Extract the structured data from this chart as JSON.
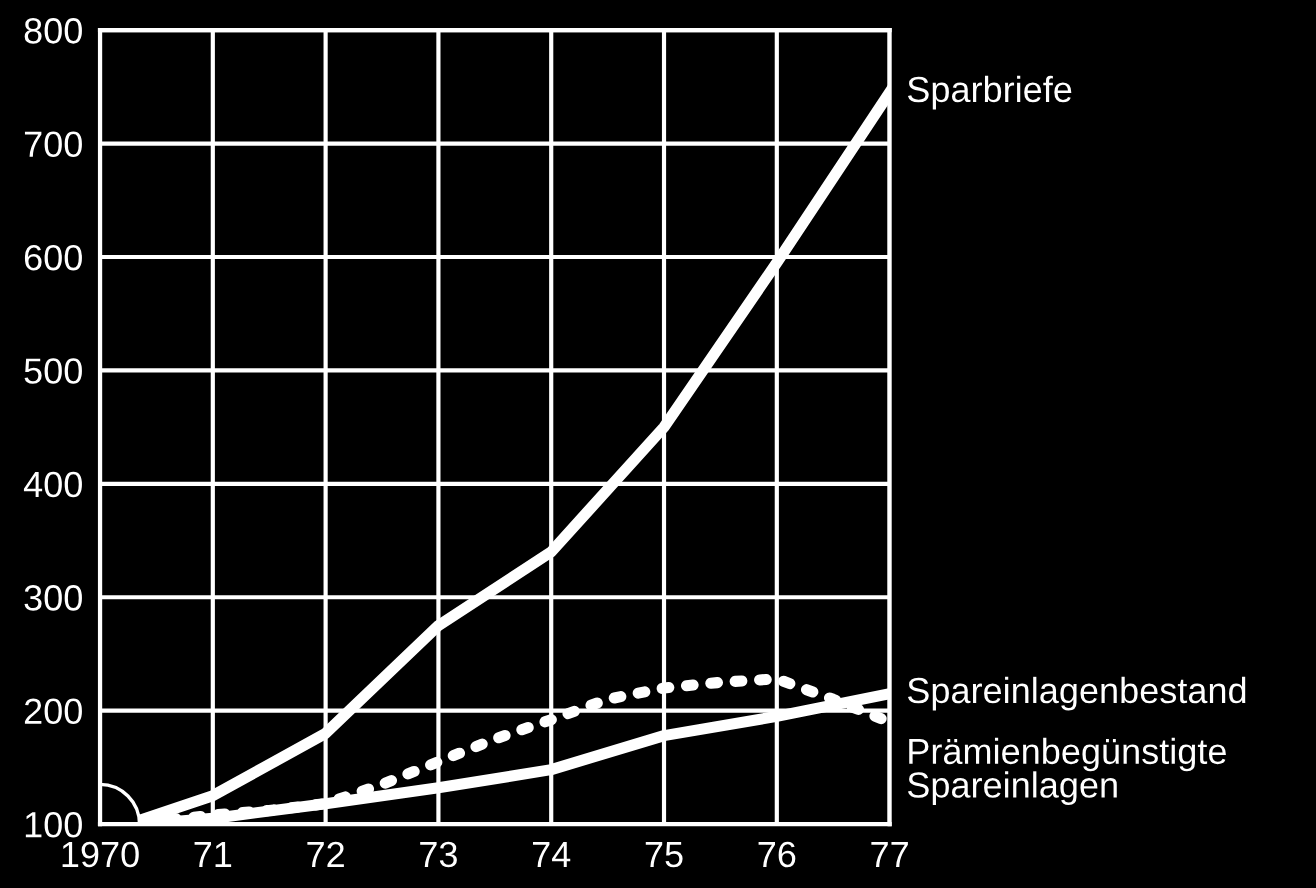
{
  "chart_data": {
    "type": "line",
    "x": [
      1970.4,
      1971,
      1972,
      1973,
      1974,
      1975,
      1976,
      1977
    ],
    "series": [
      {
        "name": "Sparbriefe",
        "color": "#ffffff",
        "line_style": "solid",
        "values": [
          105,
          125,
          180,
          275,
          340,
          450,
          595,
          745
        ]
      },
      {
        "name": "Spareinlagenbestand",
        "color": "#ffffff",
        "line_style": "solid",
        "values": [
          100,
          105,
          118,
          132,
          148,
          178,
          195,
          215
        ]
      },
      {
        "name": "Prämienbegünstigte\nSpareinlagen",
        "color": "#ffffff",
        "line_style": "dotted",
        "x": [
          1970.4,
          1970.75,
          1971,
          1971.5,
          1972,
          1972.5,
          1973,
          1973.5,
          1974,
          1974.5,
          1975,
          1975.5,
          1976,
          1976.5,
          1977
        ],
        "values": [
          103,
          105,
          108,
          112,
          118,
          135,
          155,
          175,
          192,
          210,
          220,
          225,
          228,
          210,
          190
        ]
      }
    ],
    "xlim": [
      1970,
      1977
    ],
    "ylim": [
      100,
      800
    ],
    "xticks": [
      1970,
      {
        "value": 1971,
        "label": "71"
      },
      {
        "value": 1972,
        "label": "72"
      },
      {
        "value": 1973,
        "label": "73"
      },
      {
        "value": 1974,
        "label": "74"
      },
      {
        "value": 1975,
        "label": "75"
      },
      {
        "value": 1976,
        "label": "76"
      },
      {
        "value": 1977,
        "label": "77"
      }
    ],
    "yticks": [
      100,
      200,
      300,
      400,
      500,
      600,
      700,
      800
    ],
    "grid": true
  }
}
